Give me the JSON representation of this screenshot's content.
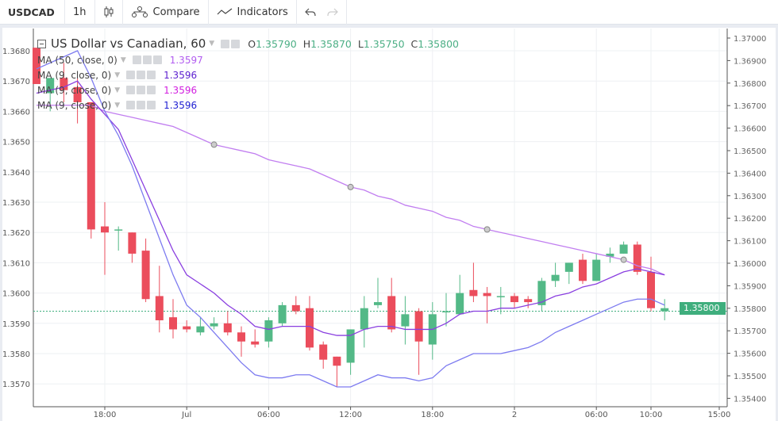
{
  "toolbar": {
    "symbol": "USDCAD",
    "interval": "1h",
    "compare": "Compare",
    "indicators": "Indicators"
  },
  "legend": {
    "title": "US Dollar vs Canadian, 60",
    "ohlc": {
      "o_label": "O",
      "o": "1.35790",
      "h_label": "H",
      "h": "1.35870",
      "l_label": "L",
      "l": "1.35750",
      "c_label": "C",
      "c": "1.35800"
    },
    "studies": [
      {
        "label": "MA (50, close, 0)",
        "value": "1.3597",
        "color": "#b25cf0"
      },
      {
        "label": "MA (9, close, 0)",
        "value": "1.3596",
        "color": "#5b1ecf"
      },
      {
        "label": "MA (9, close, 0)",
        "value": "1.3596",
        "color": "#d21fe0"
      },
      {
        "label": "MA (9, close, 0)",
        "value": "1.3596",
        "color": "#1e1ed2"
      }
    ]
  },
  "colors": {
    "up": "#53b987",
    "down": "#eb4d5c",
    "ma50": "#c17ef0",
    "ma9a": "#8a3fe0",
    "ma9b": "#7d7bf0",
    "last_price": "#3fae7d",
    "grid": "#eef0f3"
  },
  "chart_data": {
    "type": "candlestick",
    "left_axis": {
      "ticks": [
        "1.3680",
        "1.3670",
        "1.3660",
        "1.3650",
        "1.3640",
        "1.3630",
        "1.3620",
        "1.3610",
        "1.3600",
        "1.3590",
        "1.3580",
        "1.3570"
      ]
    },
    "right_axis": {
      "ticks": [
        "1.37000",
        "1.36900",
        "1.36800",
        "1.36700",
        "1.36600",
        "1.36500",
        "1.36400",
        "1.36300",
        "1.36200",
        "1.36100",
        "1.36000",
        "1.35900",
        "1.35800",
        "1.35700",
        "1.35600",
        "1.35500",
        "1.35400"
      ],
      "last_price": "1.35800"
    },
    "x_ticks": [
      {
        "label": "18:00",
        "candle": 6
      },
      {
        "label": "Jul",
        "candle": 12
      },
      {
        "label": "06:00",
        "candle": 18
      },
      {
        "label": "12:00",
        "candle": 24
      },
      {
        "label": "18:00",
        "candle": 30
      },
      {
        "label": "2",
        "candle": 36
      },
      {
        "label": "06:00",
        "candle": 42
      },
      {
        "label": "10:00",
        "candle": 46
      },
      {
        "label": "15:00",
        "candle": 51
      }
    ],
    "grid": true,
    "candles_ohlc": [
      [
        1.3681,
        1.3681,
        1.3669,
        1.3669
      ],
      [
        1.3666,
        1.3671,
        1.366,
        1.3671
      ],
      [
        1.3671,
        1.3676,
        1.3663,
        1.3667
      ],
      [
        1.3668,
        1.3671,
        1.3656,
        1.3663
      ],
      [
        1.3663,
        1.3663,
        1.3618,
        1.3621
      ],
      [
        1.3622,
        1.363,
        1.3606,
        1.362
      ],
      [
        1.3621,
        1.3622,
        1.3614,
        1.3621
      ],
      [
        1.362,
        1.362,
        1.361,
        1.3613
      ],
      [
        1.3614,
        1.3618,
        1.3597,
        1.3598
      ],
      [
        1.3599,
        1.3609,
        1.3587,
        1.3591
      ],
      [
        1.3592,
        1.3598,
        1.3585,
        1.3588
      ],
      [
        1.3589,
        1.3591,
        1.3587,
        1.3588
      ],
      [
        1.3587,
        1.3592,
        1.3586,
        1.3589
      ],
      [
        1.3589,
        1.3592,
        1.3588,
        1.359
      ],
      [
        1.359,
        1.3594,
        1.3586,
        1.3587
      ],
      [
        1.3587,
        1.3589,
        1.3579,
        1.3584
      ],
      [
        1.3584,
        1.3588,
        1.3582,
        1.3583
      ],
      [
        1.3584,
        1.3592,
        1.3582,
        1.3591
      ],
      [
        1.359,
        1.3597,
        1.3589,
        1.3596
      ],
      [
        1.3596,
        1.3599,
        1.3593,
        1.3594
      ],
      [
        1.3595,
        1.3599,
        1.3581,
        1.3582
      ],
      [
        1.3583,
        1.3584,
        1.3575,
        1.3578
      ],
      [
        1.3579,
        1.3579,
        1.3569,
        1.3576
      ],
      [
        1.3577,
        1.3588,
        1.3573,
        1.3588
      ],
      [
        1.3588,
        1.3599,
        1.3582,
        1.3595
      ],
      [
        1.3596,
        1.3605,
        1.3595,
        1.3597
      ],
      [
        1.3599,
        1.3605,
        1.3587,
        1.3588
      ],
      [
        1.3589,
        1.3599,
        1.3583,
        1.3593
      ],
      [
        1.3594,
        1.3595,
        1.3573,
        1.3584
      ],
      [
        1.3583,
        1.3597,
        1.3578,
        1.3593
      ],
      [
        1.3594,
        1.36,
        1.3589,
        1.3594
      ],
      [
        1.3593,
        1.3606,
        1.3593,
        1.36
      ],
      [
        1.3601,
        1.361,
        1.3597,
        1.3599
      ],
      [
        1.36,
        1.3602,
        1.359,
        1.3599
      ],
      [
        1.3599,
        1.3602,
        1.3593,
        1.3599
      ],
      [
        1.3599,
        1.36,
        1.3595,
        1.3597
      ],
      [
        1.3598,
        1.3599,
        1.3595,
        1.3597
      ],
      [
        1.3596,
        1.3605,
        1.3594,
        1.3604
      ],
      [
        1.3604,
        1.361,
        1.3602,
        1.3606
      ],
      [
        1.3607,
        1.361,
        1.3603,
        1.361
      ],
      [
        1.3611,
        1.3613,
        1.3603,
        1.3604
      ],
      [
        1.3604,
        1.3613,
        1.3604,
        1.3611
      ],
      [
        1.3612,
        1.3615,
        1.361,
        1.3613
      ],
      [
        1.3613,
        1.3617,
        1.3613,
        1.3616
      ],
      [
        1.3616,
        1.3617,
        1.3606,
        1.3607
      ],
      [
        1.3607,
        1.3612,
        1.3594,
        1.3595
      ],
      [
        1.3594,
        1.3598,
        1.3591,
        1.3595
      ]
    ],
    "ma50": [
      1.3662,
      1.3662,
      1.3662,
      1.3662,
      1.3662,
      1.366,
      1.3659,
      1.3658,
      1.3657,
      1.3656,
      1.3655,
      1.3653,
      1.3651,
      1.3649,
      1.3648,
      1.3647,
      1.3646,
      1.3644,
      1.3643,
      1.3642,
      1.3641,
      1.3639,
      1.3637,
      1.3635,
      1.3634,
      1.3632,
      1.3631,
      1.3629,
      1.3628,
      1.3627,
      1.3625,
      1.3624,
      1.3622,
      1.3621,
      1.362,
      1.3619,
      1.3618,
      1.3617,
      1.3616,
      1.3615,
      1.3614,
      1.3613,
      1.3612,
      1.3611,
      1.3609,
      1.3608,
      1.3606
    ],
    "ma50_markers": [
      14,
      24,
      34,
      44
    ],
    "ma9_a": [
      1.3666,
      1.3667,
      1.3668,
      1.367,
      1.3664,
      1.3659,
      1.3654,
      1.3644,
      1.3634,
      1.3624,
      1.3614,
      1.3606,
      1.3603,
      1.36,
      1.3596,
      1.3593,
      1.3589,
      1.3588,
      1.3589,
      1.3589,
      1.3589,
      1.3587,
      1.3586,
      1.3586,
      1.3588,
      1.3589,
      1.3589,
      1.3588,
      1.3588,
      1.3588,
      1.359,
      1.3593,
      1.3594,
      1.3594,
      1.3595,
      1.3595,
      1.3596,
      1.3597,
      1.3599,
      1.36,
      1.3602,
      1.3603,
      1.3605,
      1.3607,
      1.3608,
      1.3607,
      1.3606
    ],
    "ma9_b": [
      1.3674,
      1.3676,
      1.3678,
      1.368,
      1.3671,
      1.366,
      1.3652,
      1.3642,
      1.363,
      1.3618,
      1.3606,
      1.3596,
      1.3592,
      1.3587,
      1.3582,
      1.3577,
      1.3573,
      1.3572,
      1.3572,
      1.3573,
      1.3573,
      1.3571,
      1.3569,
      1.3569,
      1.3571,
      1.3573,
      1.3572,
      1.3572,
      1.3571,
      1.3572,
      1.3576,
      1.3578,
      1.358,
      1.358,
      1.358,
      1.3581,
      1.3582,
      1.3584,
      1.3587,
      1.3589,
      1.3591,
      1.3593,
      1.3595,
      1.3597,
      1.3598,
      1.3598,
      1.3596
    ],
    "last_price_left": 1.3594
  }
}
